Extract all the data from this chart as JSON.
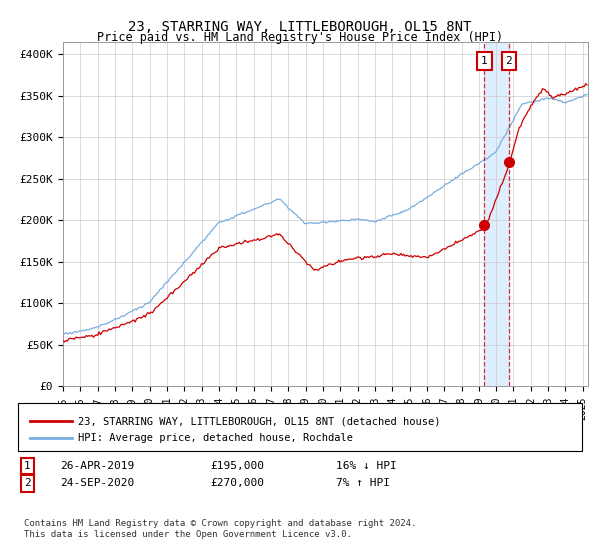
{
  "title": "23, STARRING WAY, LITTLEBOROUGH, OL15 8NT",
  "subtitle": "Price paid vs. HM Land Registry's House Price Index (HPI)",
  "ylabel_ticks": [
    "£0",
    "£50K",
    "£100K",
    "£150K",
    "£200K",
    "£250K",
    "£300K",
    "£350K",
    "£400K"
  ],
  "ytick_values": [
    0,
    50000,
    100000,
    150000,
    200000,
    250000,
    300000,
    350000,
    400000
  ],
  "ylim": [
    0,
    415000
  ],
  "xlim_start": 1995.0,
  "xlim_end": 2025.3,
  "transaction1": {
    "date": 2019.32,
    "price": 195000,
    "label": "1",
    "text": "26-APR-2019",
    "amount": "£195,000",
    "hpi": "16% ↓ HPI"
  },
  "transaction2": {
    "date": 2020.73,
    "price": 270000,
    "label": "2",
    "text": "24-SEP-2020",
    "amount": "£270,000",
    "hpi": "7% ↑ HPI"
  },
  "legend_line1": "23, STARRING WAY, LITTLEBOROUGH, OL15 8NT (detached house)",
  "legend_line2": "HPI: Average price, detached house, Rochdale",
  "footnote": "Contains HM Land Registry data © Crown copyright and database right 2024.\nThis data is licensed under the Open Government Licence v3.0.",
  "line_color_red": "#cc0000",
  "line_color_blue": "#7aade0",
  "shade_color": "#ddeeff",
  "background_color": "#ffffff",
  "grid_color": "#cccccc"
}
